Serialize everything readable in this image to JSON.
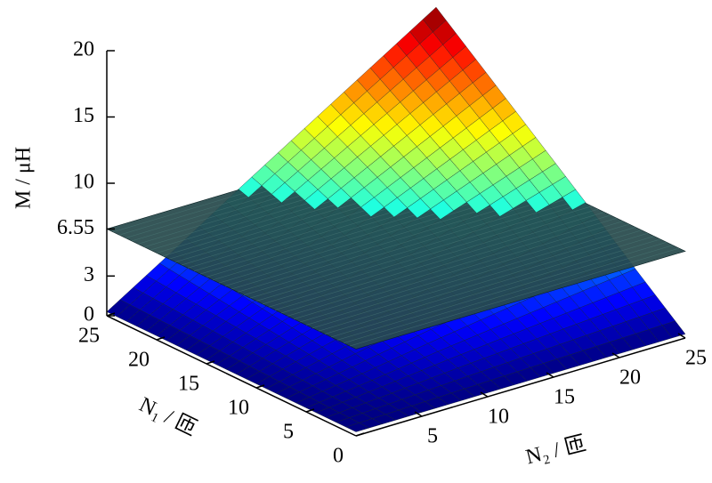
{
  "chart_data": {
    "type": "surface3d",
    "x_label": "N₁ / 匝",
    "y_label": "N₂ / 匝",
    "z_label": "M / μH",
    "x": [
      0,
      5,
      10,
      15,
      20,
      25
    ],
    "y": [
      0,
      5,
      10,
      15,
      20,
      25
    ],
    "z": [
      [
        0.3,
        0.3,
        0.3,
        0.3,
        0.3,
        0.3
      ],
      [
        0.3,
        0.9,
        1.6,
        2.2,
        2.8,
        3.4
      ],
      [
        0.3,
        1.6,
        2.8,
        4.1,
        5.3,
        6.6
      ],
      [
        0.3,
        2.2,
        4.1,
        5.9,
        7.8,
        9.7
      ],
      [
        0.3,
        2.8,
        5.3,
        7.8,
        10.3,
        12.8
      ],
      [
        0.3,
        3.4,
        6.6,
        9.7,
        12.8,
        15.9
      ]
    ],
    "plane": {
      "value": 6.55,
      "color": "#27494b"
    },
    "xlim": [
      0,
      25
    ],
    "ylim": [
      0,
      25
    ],
    "zlim": [
      0,
      20
    ],
    "xticks": [
      0,
      5,
      10,
      15,
      20,
      25
    ],
    "yticks": [
      5,
      10,
      15,
      20,
      25
    ],
    "zticks": [
      0,
      3,
      6.55,
      10,
      15,
      20
    ],
    "colormap": "jet"
  }
}
